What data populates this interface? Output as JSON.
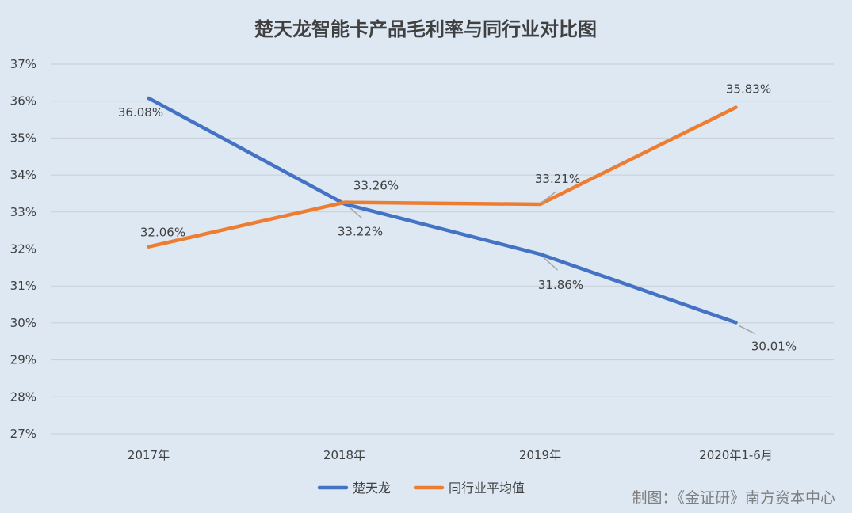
{
  "chart_data": {
    "type": "line",
    "title": "楚天龙智能卡产品毛利率与同行业对比图",
    "categories": [
      "2017年",
      "2018年",
      "2019年",
      "2020年1-6月"
    ],
    "series": [
      {
        "name": "楚天龙",
        "values": [
          36.08,
          33.22,
          31.86,
          30.01
        ],
        "labels": [
          "36.08%",
          "33.22%",
          "31.86%",
          "30.01%"
        ],
        "color": "#4472c4"
      },
      {
        "name": "同行业平均值",
        "values": [
          32.06,
          33.26,
          33.21,
          35.83
        ],
        "labels": [
          "32.06%",
          "33.26%",
          "33.21%",
          "35.83%"
        ],
        "color": "#ed7d31"
      }
    ],
    "ylim": [
      27,
      37
    ],
    "yticks": [
      "27%",
      "28%",
      "29%",
      "30%",
      "31%",
      "32%",
      "33%",
      "34%",
      "35%",
      "36%",
      "37%"
    ],
    "grid": true,
    "legend_position": "bottom"
  },
  "credit": "制图：《金证研》南方资本中心"
}
